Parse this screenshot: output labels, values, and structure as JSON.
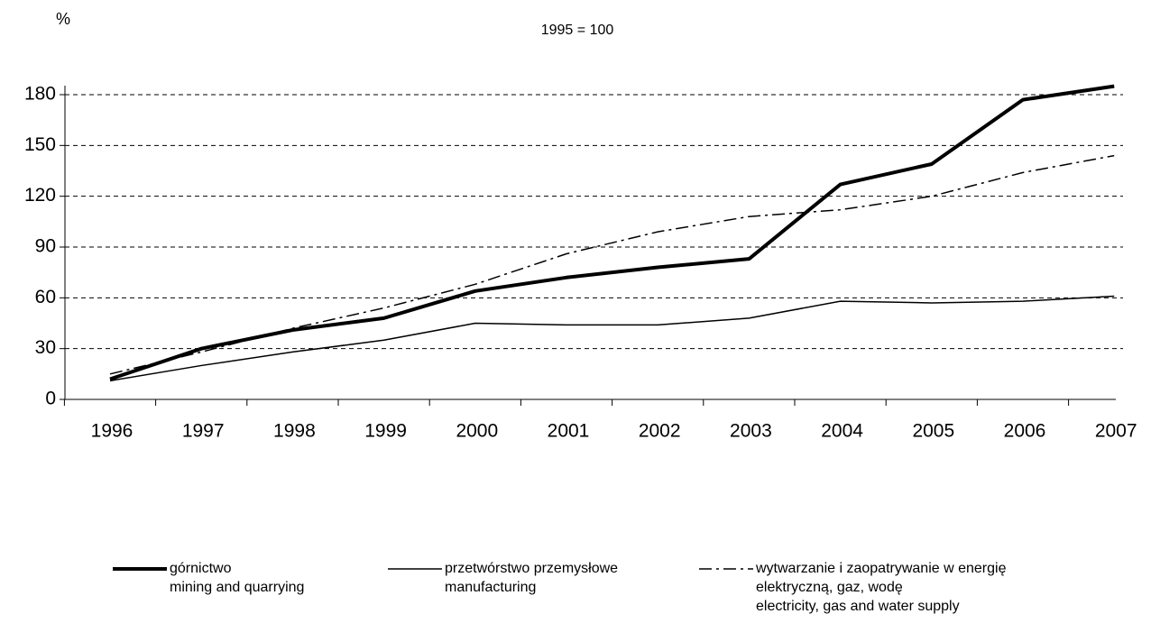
{
  "chart_data": {
    "type": "line",
    "y_axis_label": "%",
    "subtitle": "1995 = 100",
    "categories": [
      "1996",
      "1997",
      "1998",
      "1999",
      "2000",
      "2001",
      "2002",
      "2003",
      "2004",
      "2005",
      "2006",
      "2007"
    ],
    "series": [
      {
        "name": "górnictwo\nmining and quarrying",
        "color": "#000000",
        "line_width": 4,
        "line_style": "solid",
        "values": [
          12,
          30,
          41,
          48,
          64,
          72,
          78,
          83,
          127,
          139,
          177,
          185
        ]
      },
      {
        "name": "przetwórstwo przemysłowe\nmanufacturing",
        "color": "#000000",
        "line_width": 1.5,
        "line_style": "solid",
        "values": [
          11,
          20,
          28,
          35,
          45,
          44,
          44,
          48,
          58,
          57,
          58,
          61
        ]
      },
      {
        "name": "wytwarzanie i zaopatrywanie w energię\nelektryczną, gaz, wodę\nelectricity, gas and water supply",
        "color": "#000000",
        "line_width": 1.5,
        "line_style": "dash-dot",
        "values": [
          15,
          28,
          42,
          54,
          68,
          86,
          99,
          108,
          112,
          120,
          134,
          144
        ]
      }
    ],
    "ylim": [
      0,
      180
    ],
    "yticks": [
      0,
      30,
      60,
      90,
      120,
      150,
      180
    ],
    "grid": true,
    "legend": "bottom"
  }
}
